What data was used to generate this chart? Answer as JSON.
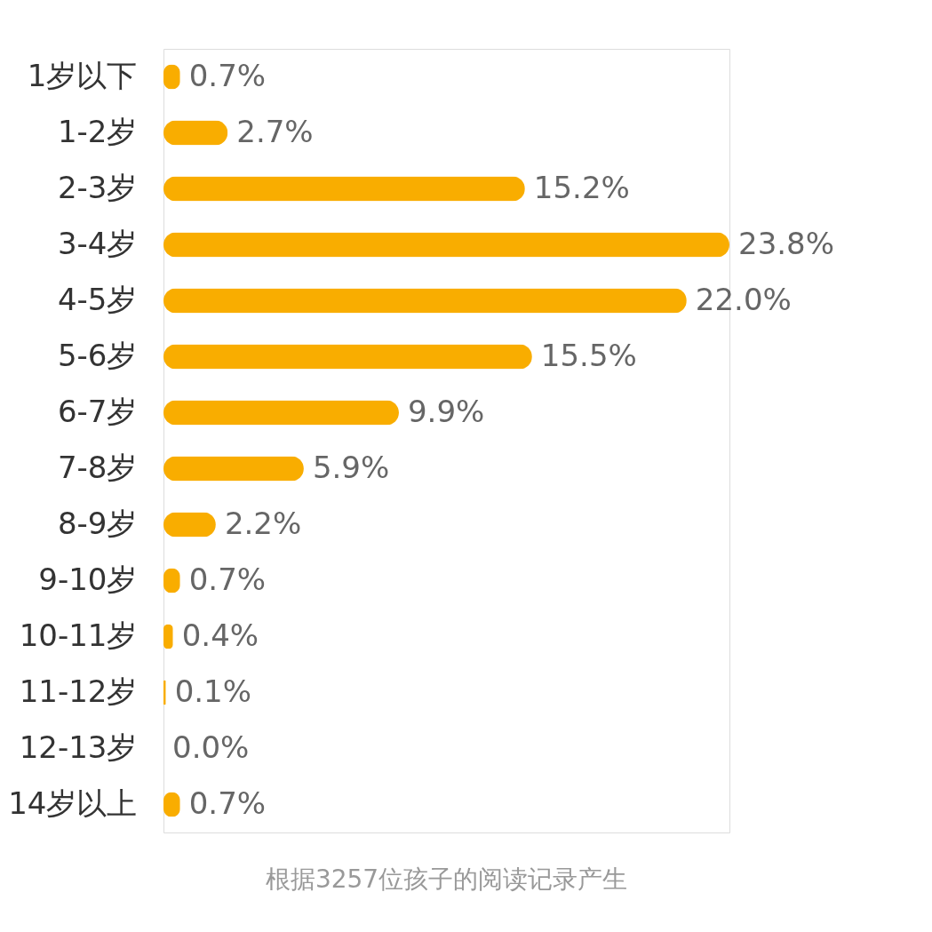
{
  "chart_data": {
    "type": "bar",
    "orientation": "horizontal",
    "categories": [
      "1岁以下",
      "1-2岁",
      "2-3岁",
      "3-4岁",
      "4-5岁",
      "5-6岁",
      "6-7岁",
      "7-8岁",
      "8-9岁",
      "9-10岁",
      "10-11岁",
      "11-12岁",
      "12-13岁",
      "14岁以上"
    ],
    "values": [
      0.7,
      2.7,
      15.2,
      23.8,
      22.0,
      15.5,
      9.9,
      5.9,
      2.2,
      0.7,
      0.4,
      0.1,
      0.0,
      0.7
    ],
    "value_labels": [
      "0.7%",
      "2.7%",
      "15.2%",
      "23.8%",
      "22.0%",
      "15.5%",
      "9.9%",
      "5.9%",
      "2.2%",
      "0.7%",
      "0.4%",
      "0.1%",
      "0.0%",
      "0.7%"
    ],
    "color": "#f9ad00",
    "grid": false,
    "tick_labels": "y",
    "annotations": [
      "根据3257位孩子的阅读记录产生"
    ]
  }
}
